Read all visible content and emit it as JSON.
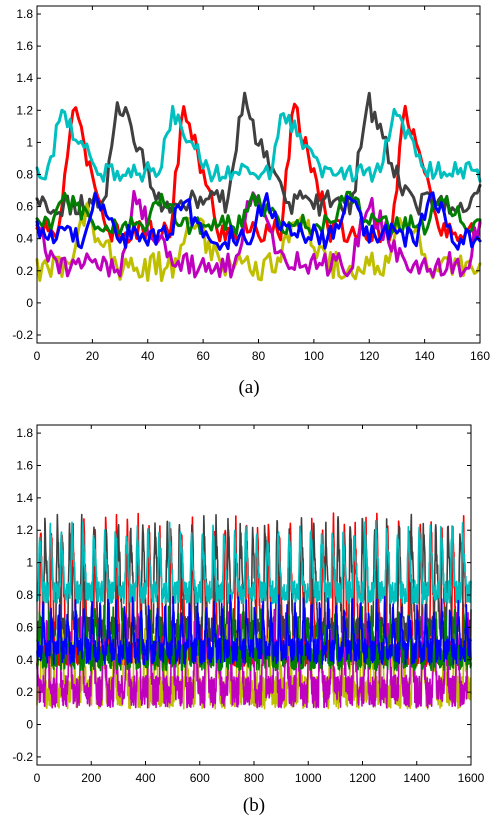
{
  "chart_data": [
    {
      "type": "line",
      "caption": "(a)",
      "xlim": [
        0,
        160
      ],
      "ylim": [
        -0.25,
        1.85
      ],
      "xticks": [
        "0",
        "20",
        "40",
        "60",
        "80",
        "100",
        "120",
        "140",
        "160"
      ],
      "yticks": [
        "-0.2",
        "0",
        "0.2",
        "0.4",
        "0.6",
        "0.8",
        "1",
        "1.2",
        "1.4",
        "1.6",
        "1.8"
      ],
      "grid": false,
      "legend": "none",
      "series": [
        {
          "color": "#ff0000",
          "period": 40,
          "phase": 8,
          "mean": 0.72,
          "amp": 0.78,
          "noise": 0.07
        },
        {
          "color": "#404040",
          "period": 45,
          "phase": 24,
          "mean": 0.85,
          "amp": 0.65,
          "noise": 0.08
        },
        {
          "color": "#00bfbf",
          "period": 40,
          "phase": 4,
          "mean": 0.95,
          "amp": 0.38,
          "noise": 0.06
        },
        {
          "color": "#bfbf00",
          "period": 38,
          "phase": 12,
          "mean": 0.35,
          "amp": 0.35,
          "noise": 0.09
        },
        {
          "color": "#bf00bf",
          "period": 42,
          "phase": 30,
          "mean": 0.38,
          "amp": 0.4,
          "noise": 0.08
        },
        {
          "color": "#007f00",
          "period": 34,
          "phase": 5,
          "mean": 0.55,
          "amp": 0.18,
          "noise": 0.06
        },
        {
          "color": "#0000ff",
          "period": 30,
          "phase": 18,
          "mean": 0.5,
          "amp": 0.25,
          "noise": 0.08
        }
      ]
    },
    {
      "type": "line",
      "caption": "(b)",
      "xlim": [
        0,
        1600
      ],
      "ylim": [
        -0.25,
        1.85
      ],
      "xticks": [
        "0",
        "200",
        "400",
        "600",
        "800",
        "1000",
        "1200",
        "1400",
        "1600"
      ],
      "yticks": [
        "-0.2",
        "0",
        "0.2",
        "0.4",
        "0.6",
        "0.8",
        "1",
        "1.2",
        "1.4",
        "1.6",
        "1.8"
      ],
      "grid": false,
      "legend": "none",
      "series": [
        {
          "color": "#ff0000",
          "period": 40,
          "phase": 8,
          "mean": 0.72,
          "amp": 0.8,
          "noise": 0.08
        },
        {
          "color": "#404040",
          "period": 45,
          "phase": 24,
          "mean": 0.82,
          "amp": 0.66,
          "noise": 0.08
        },
        {
          "color": "#00bfbf",
          "period": 40,
          "phase": 4,
          "mean": 0.95,
          "amp": 0.38,
          "noise": 0.07
        },
        {
          "color": "#bfbf00",
          "period": 38,
          "phase": 12,
          "mean": 0.33,
          "amp": 0.38,
          "noise": 0.1
        },
        {
          "color": "#bf00bf",
          "period": 42,
          "phase": 30,
          "mean": 0.35,
          "amp": 0.42,
          "noise": 0.1
        },
        {
          "color": "#007f00",
          "period": 34,
          "phase": 5,
          "mean": 0.5,
          "amp": 0.25,
          "noise": 0.08
        },
        {
          "color": "#0000ff",
          "period": 30,
          "phase": 18,
          "mean": 0.55,
          "amp": 0.28,
          "noise": 0.08
        }
      ]
    }
  ]
}
